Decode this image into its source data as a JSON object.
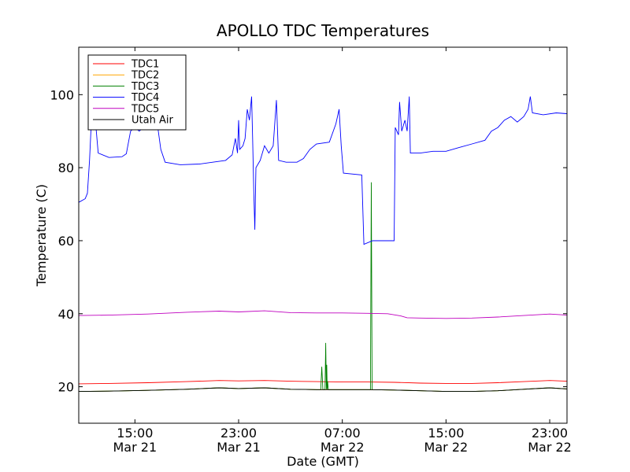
{
  "chart_data": {
    "type": "line",
    "title": "APOLLO TDC Temperatures",
    "xlabel": "Date (GMT)",
    "ylabel": "Temperature (C)",
    "ylim": [
      10,
      113
    ],
    "xlim": [
      "Mar 21 10:40",
      "Mar 23 00:20"
    ],
    "yticks": [
      20,
      40,
      60,
      80,
      100
    ],
    "xticks": [
      {
        "time": "Mar 21 15:00",
        "line1": "15:00",
        "line2": "Mar 21"
      },
      {
        "time": "Mar 21 23:00",
        "line1": "23:00",
        "line2": "Mar 21"
      },
      {
        "time": "Mar 22 07:00",
        "line1": "07:00",
        "line2": "Mar 22"
      },
      {
        "time": "Mar 22 15:00",
        "line1": "15:00",
        "line2": "Mar 22"
      },
      {
        "time": "Mar 22 23:00",
        "line1": "23:00",
        "line2": "Mar 22"
      }
    ],
    "grid": false,
    "legend_position": "top-left",
    "series": [
      {
        "name": "TDC1",
        "color": "#ff0000",
        "points": [
          [
            "Mar 21 10:40",
            20.8
          ],
          [
            "Mar 21 13:00",
            20.9
          ],
          [
            "Mar 21 16:00",
            21.1
          ],
          [
            "Mar 21 19:00",
            21.4
          ],
          [
            "Mar 21 21:30",
            21.7
          ],
          [
            "Mar 21 23:00",
            21.6
          ],
          [
            "Mar 22 01:00",
            21.7
          ],
          [
            "Mar 22 03:00",
            21.5
          ],
          [
            "Mar 22 05:00",
            21.4
          ],
          [
            "Mar 22 07:00",
            21.3
          ],
          [
            "Mar 22 09:00",
            21.3
          ],
          [
            "Mar 22 11:00",
            21.2
          ],
          [
            "Mar 22 13:00",
            21.0
          ],
          [
            "Mar 22 15:00",
            20.9
          ],
          [
            "Mar 22 17:00",
            20.9
          ],
          [
            "Mar 22 19:00",
            21.1
          ],
          [
            "Mar 22 21:00",
            21.4
          ],
          [
            "Mar 22 23:00",
            21.7
          ],
          [
            "Mar 23 00:20",
            21.5
          ]
        ]
      },
      {
        "name": "TDC2",
        "color": "#ffa500",
        "points": [
          [
            "Mar 21 10:40",
            18.7
          ],
          [
            "Mar 21 13:00",
            18.8
          ],
          [
            "Mar 21 16:00",
            19.0
          ],
          [
            "Mar 21 19:00",
            19.3
          ],
          [
            "Mar 21 21:30",
            19.7
          ],
          [
            "Mar 21 23:00",
            19.5
          ],
          [
            "Mar 22 01:00",
            19.7
          ],
          [
            "Mar 22 03:00",
            19.3
          ],
          [
            "Mar 22 05:00",
            19.2
          ],
          [
            "Mar 22 07:00",
            19.2
          ],
          [
            "Mar 22 09:00",
            19.2
          ],
          [
            "Mar 22 11:00",
            19.1
          ],
          [
            "Mar 22 13:00",
            18.9
          ],
          [
            "Mar 22 15:00",
            18.7
          ],
          [
            "Mar 22 17:00",
            18.7
          ],
          [
            "Mar 22 19:00",
            18.9
          ],
          [
            "Mar 22 21:00",
            19.3
          ],
          [
            "Mar 22 23:00",
            19.7
          ],
          [
            "Mar 23 00:20",
            19.4
          ]
        ]
      },
      {
        "name": "TDC3",
        "color": "#008000",
        "points": [
          [
            "Mar 21 10:40",
            18.7
          ],
          [
            "Mar 21 13:00",
            18.8
          ],
          [
            "Mar 21 16:00",
            19.0
          ],
          [
            "Mar 21 19:00",
            19.3
          ],
          [
            "Mar 21 21:30",
            19.7
          ],
          [
            "Mar 21 23:00",
            19.5
          ],
          [
            "Mar 22 01:00",
            19.7
          ],
          [
            "Mar 22 03:00",
            19.3
          ],
          [
            "Mar 22 05:00",
            19.2
          ],
          [
            "Mar 22 05:20",
            19.2
          ],
          [
            "Mar 22 05:25",
            25.5
          ],
          [
            "Mar 22 05:30",
            19.2
          ],
          [
            "Mar 22 05:40",
            19.2
          ],
          [
            "Mar 22 05:43",
            32.0
          ],
          [
            "Mar 22 05:46",
            19.3
          ],
          [
            "Mar 22 05:48",
            26.0
          ],
          [
            "Mar 22 05:50",
            19.3
          ],
          [
            "Mar 22 05:52",
            21.5
          ],
          [
            "Mar 22 05:55",
            19.2
          ],
          [
            "Mar 22 07:00",
            19.2
          ],
          [
            "Mar 22 09:10",
            19.2
          ],
          [
            "Mar 22 09:14",
            76.0
          ],
          [
            "Mar 22 09:18",
            19.2
          ],
          [
            "Mar 22 11:00",
            19.1
          ],
          [
            "Mar 22 13:00",
            18.9
          ],
          [
            "Mar 22 15:00",
            18.7
          ],
          [
            "Mar 22 17:00",
            18.7
          ],
          [
            "Mar 22 19:00",
            18.9
          ],
          [
            "Mar 22 21:00",
            19.3
          ],
          [
            "Mar 22 23:00",
            19.7
          ],
          [
            "Mar 23 00:20",
            19.4
          ]
        ]
      },
      {
        "name": "TDC4",
        "color": "#0000ff",
        "points": [
          [
            "Mar 21 10:40",
            70.5
          ],
          [
            "Mar 21 11:10",
            71.5
          ],
          [
            "Mar 21 11:20",
            73.0
          ],
          [
            "Mar 21 11:30",
            82.0
          ],
          [
            "Mar 21 11:40",
            95.0
          ],
          [
            "Mar 21 11:50",
            97.0
          ],
          [
            "Mar 21 12:00",
            91.0
          ],
          [
            "Mar 21 12:10",
            84.0
          ],
          [
            "Mar 21 13:00",
            82.8
          ],
          [
            "Mar 21 14:00",
            83.0
          ],
          [
            "Mar 21 14:20",
            83.8
          ],
          [
            "Mar 21 14:40",
            90.0
          ],
          [
            "Mar 21 15:00",
            91.0
          ],
          [
            "Mar 21 15:20",
            90.0
          ],
          [
            "Mar 21 16:00",
            92.0
          ],
          [
            "Mar 21 16:40",
            93.5
          ],
          [
            "Mar 21 17:00",
            85.0
          ],
          [
            "Mar 21 17:20",
            81.5
          ],
          [
            "Mar 21 18:30",
            80.8
          ],
          [
            "Mar 21 20:00",
            81.0
          ],
          [
            "Mar 21 21:00",
            81.5
          ],
          [
            "Mar 21 22:00",
            82.0
          ],
          [
            "Mar 21 22:30",
            83.5
          ],
          [
            "Mar 21 22:45",
            88.0
          ],
          [
            "Mar 21 22:55",
            84.0
          ],
          [
            "Mar 21 23:00",
            93.0
          ],
          [
            "Mar 21 23:05",
            85.0
          ],
          [
            "Mar 21 23:20",
            86.0
          ],
          [
            "Mar 21 23:30",
            88.0
          ],
          [
            "Mar 21 23:40",
            96.0
          ],
          [
            "Mar 21 23:50",
            93.0
          ],
          [
            "Mar 22 00:00",
            99.5
          ],
          [
            "Mar 22 00:05",
            88.0
          ],
          [
            "Mar 22 00:10",
            74.0
          ],
          [
            "Mar 22 00:15",
            63.0
          ],
          [
            "Mar 22 00:20",
            80.0
          ],
          [
            "Mar 22 00:40",
            82.0
          ],
          [
            "Mar 22 01:00",
            86.0
          ],
          [
            "Mar 22 01:20",
            84.0
          ],
          [
            "Mar 22 01:40",
            86.0
          ],
          [
            "Mar 22 01:55",
            98.5
          ],
          [
            "Mar 22 02:05",
            82.0
          ],
          [
            "Mar 22 02:40",
            81.5
          ],
          [
            "Mar 22 03:30",
            81.5
          ],
          [
            "Mar 22 04:00",
            82.5
          ],
          [
            "Mar 22 04:30",
            85.0
          ],
          [
            "Mar 22 05:00",
            86.5
          ],
          [
            "Mar 22 06:00",
            87.0
          ],
          [
            "Mar 22 06:30",
            92.0
          ],
          [
            "Mar 22 06:45",
            96.0
          ],
          [
            "Mar 22 06:55",
            86.0
          ],
          [
            "Mar 22 07:05",
            78.5
          ],
          [
            "Mar 22 08:30",
            78.0
          ],
          [
            "Mar 22 08:40",
            59.0
          ],
          [
            "Mar 22 09:20",
            60.0
          ],
          [
            "Mar 22 10:30",
            60.0
          ],
          [
            "Mar 22 11:00",
            60.0
          ],
          [
            "Mar 22 11:05",
            91.0
          ],
          [
            "Mar 22 11:20",
            89.0
          ],
          [
            "Mar 22 11:25",
            98.0
          ],
          [
            "Mar 22 11:35",
            90.0
          ],
          [
            "Mar 22 11:50",
            93.0
          ],
          [
            "Mar 22 12:00",
            90.0
          ],
          [
            "Mar 22 12:10",
            99.5
          ],
          [
            "Mar 22 12:15",
            84.0
          ],
          [
            "Mar 22 13:00",
            84.0
          ],
          [
            "Mar 22 14:00",
            84.5
          ],
          [
            "Mar 22 15:00",
            84.5
          ],
          [
            "Mar 22 16:00",
            85.5
          ],
          [
            "Mar 22 17:00",
            86.5
          ],
          [
            "Mar 22 18:00",
            87.5
          ],
          [
            "Mar 22 18:30",
            90.0
          ],
          [
            "Mar 22 19:00",
            91.0
          ],
          [
            "Mar 22 19:30",
            93.0
          ],
          [
            "Mar 22 20:00",
            94.0
          ],
          [
            "Mar 22 20:30",
            92.5
          ],
          [
            "Mar 22 21:00",
            94.0
          ],
          [
            "Mar 22 21:20",
            96.0
          ],
          [
            "Mar 22 21:30",
            99.5
          ],
          [
            "Mar 22 21:40",
            95.0
          ],
          [
            "Mar 22 22:30",
            94.5
          ],
          [
            "Mar 22 23:30",
            95.0
          ],
          [
            "Mar 23 00:20",
            94.8
          ]
        ]
      },
      {
        "name": "TDC5",
        "color": "#bf00bf",
        "points": [
          [
            "Mar 21 10:40",
            39.5
          ],
          [
            "Mar 21 13:00",
            39.6
          ],
          [
            "Mar 21 16:00",
            39.9
          ],
          [
            "Mar 21 19:00",
            40.4
          ],
          [
            "Mar 21 21:30",
            40.7
          ],
          [
            "Mar 21 23:00",
            40.5
          ],
          [
            "Mar 22 01:00",
            40.8
          ],
          [
            "Mar 22 03:00",
            40.3
          ],
          [
            "Mar 22 05:00",
            40.2
          ],
          [
            "Mar 22 07:00",
            40.2
          ],
          [
            "Mar 22 09:00",
            40.1
          ],
          [
            "Mar 22 10:30",
            40.0
          ],
          [
            "Mar 22 11:30",
            39.4
          ],
          [
            "Mar 22 12:00",
            38.9
          ],
          [
            "Mar 22 13:00",
            38.8
          ],
          [
            "Mar 22 15:00",
            38.7
          ],
          [
            "Mar 22 17:00",
            38.8
          ],
          [
            "Mar 22 19:00",
            39.1
          ],
          [
            "Mar 22 21:00",
            39.5
          ],
          [
            "Mar 22 23:00",
            39.9
          ],
          [
            "Mar 23 00:20",
            39.6
          ]
        ]
      },
      {
        "name": "Utah Air",
        "color": "#000000",
        "points": [
          [
            "Mar 21 10:40",
            18.7
          ],
          [
            "Mar 21 13:00",
            18.8
          ],
          [
            "Mar 21 16:00",
            19.0
          ],
          [
            "Mar 21 19:00",
            19.3
          ],
          [
            "Mar 21 21:30",
            19.7
          ],
          [
            "Mar 21 23:00",
            19.5
          ],
          [
            "Mar 22 01:00",
            19.7
          ],
          [
            "Mar 22 03:00",
            19.3
          ],
          [
            "Mar 22 05:00",
            19.2
          ],
          [
            "Mar 22 07:00",
            19.2
          ],
          [
            "Mar 22 09:00",
            19.2
          ],
          [
            "Mar 22 11:00",
            19.1
          ],
          [
            "Mar 22 13:00",
            18.9
          ],
          [
            "Mar 22 15:00",
            18.7
          ],
          [
            "Mar 22 17:00",
            18.7
          ],
          [
            "Mar 22 19:00",
            18.9
          ],
          [
            "Mar 22 21:00",
            19.3
          ],
          [
            "Mar 22 23:00",
            19.7
          ],
          [
            "Mar 23 00:20",
            19.4
          ]
        ]
      }
    ]
  }
}
